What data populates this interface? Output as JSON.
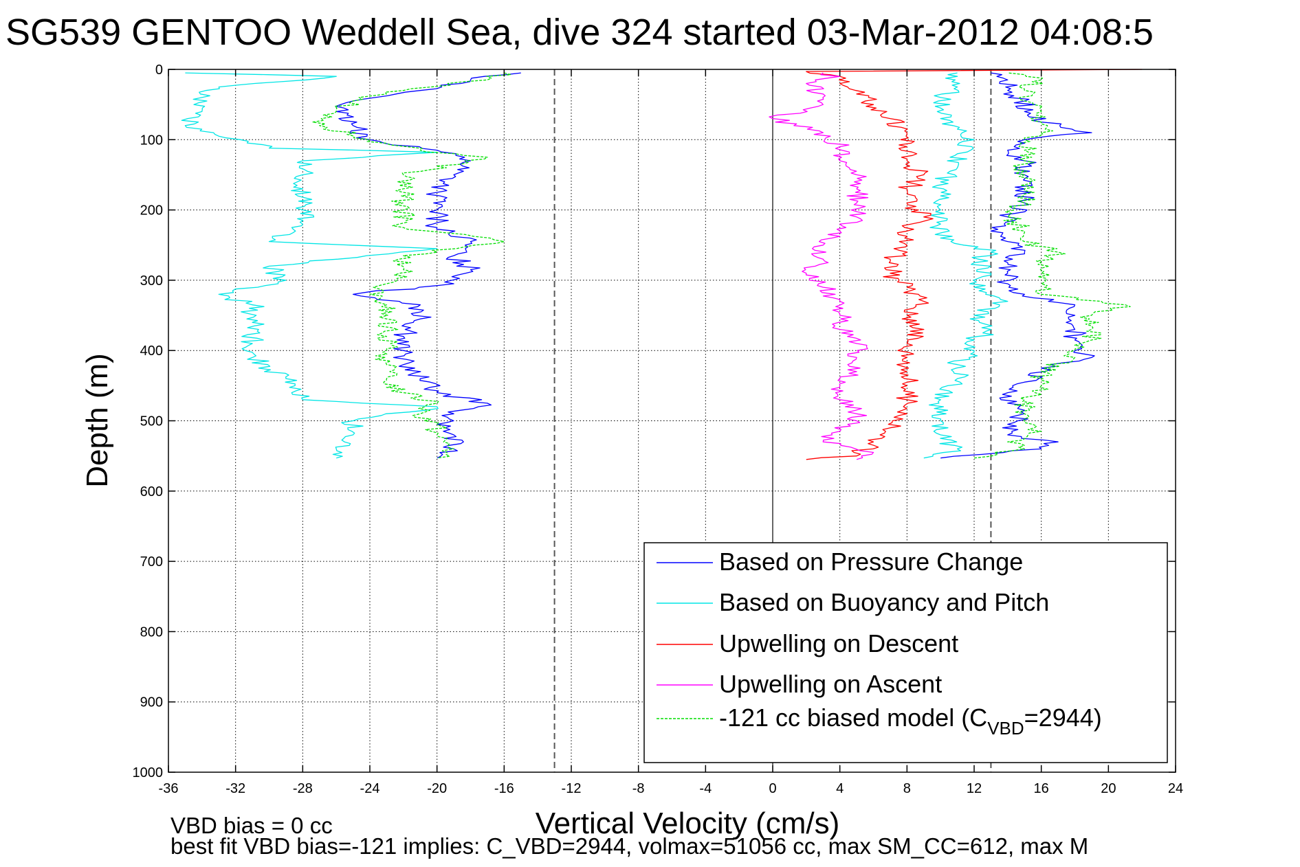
{
  "chart_data": {
    "type": "line",
    "title": "SG539 GENTOO Weddell Sea, dive 324 started 03-Mar-2012 04:08:5",
    "xlabel": "Vertical Velocity (cm/s)",
    "ylabel": "Depth (m)",
    "xlim": [
      -36,
      24
    ],
    "ylim": [
      0,
      1000
    ],
    "y_inverted": true,
    "grid": true,
    "x_ticks": [
      "-36",
      "-32",
      "-28",
      "-24",
      "-20",
      "-16",
      "-12",
      "-8",
      "-4",
      "0",
      "4",
      "8",
      "12",
      "16",
      "20",
      "24"
    ],
    "y_ticks": [
      "0",
      "100",
      "200",
      "300",
      "400",
      "500",
      "600",
      "700",
      "800",
      "900",
      "1000"
    ],
    "reference_lines": [
      {
        "x": -13,
        "style": "dashed",
        "color": "#555555"
      },
      {
        "x": 0,
        "style": "solid",
        "color": "#000000"
      },
      {
        "x": 13,
        "style": "dashed",
        "color": "#555555"
      }
    ],
    "legend_position": "bottom-right",
    "series": [
      {
        "name": "Based on Pressure Change",
        "color": "#0000ff",
        "style": "solid",
        "segments": [
          {
            "y": [
              5,
              15,
              30,
              45,
              60,
              80,
              100,
              115,
              130,
              150,
              175,
              200,
              225,
              245,
              265,
              285,
              305,
              320,
              335,
              355,
              380,
              400,
              420,
              440,
              460,
              475,
              490,
              505,
              520,
              540,
              553
            ],
            "x": [
              -15,
              -18,
              -21,
              -25,
              -26,
              -25,
              -24,
              -20,
              -18,
              -19,
              -20,
              -20,
              -20,
              -18,
              -19,
              -18,
              -19,
              -25,
              -21,
              -21,
              -22,
              -22,
              -22,
              -21,
              -20,
              -17,
              -19,
              -20,
              -19,
              -19,
              -20
            ]
          },
          {
            "y": [
              553,
              540,
              530,
              520,
              505,
              490,
              475,
              460,
              445,
              425,
              410,
              400,
              385,
              370,
              350,
              335,
              320,
              305,
              290,
              275,
              260,
              245,
              230,
              210,
              190,
              170,
              150,
              130,
              115,
              100,
              90,
              75,
              60,
              45,
              30,
              15,
              5
            ],
            "x": [
              10,
              16,
              17,
              14,
              14,
              15,
              14,
              14,
              15,
              16,
              19,
              18,
              18,
              18,
              18,
              18,
              15,
              14,
              14,
              14,
              15,
              14,
              13,
              14,
              15,
              15,
              15,
              15,
              14,
              15,
              19,
              16,
              15,
              15,
              14,
              14,
              13
            ]
          }
        ]
      },
      {
        "name": "Based on Buoyancy and Pitch",
        "color": "#00e5e5",
        "style": "solid",
        "segments": [
          {
            "y": [
              5,
              10,
              25,
              40,
              60,
              80,
              95,
              112,
              118,
              130,
              150,
              170,
              200,
              220,
              245,
              255,
              280,
              300,
              320,
              335,
              360,
              390,
              410,
              440,
              470,
              480,
              500,
              520,
              540,
              553
            ],
            "x": [
              -35,
              -26,
              -33,
              -34,
              -34,
              -35,
              -33,
              -30,
              -20,
              -28,
              -28,
              -28,
              -28,
              -28,
              -30,
              -20,
              -30,
              -29,
              -33,
              -31,
              -31,
              -31,
              -31,
              -29,
              -28,
              -20,
              -25,
              -25,
              -26,
              -26
            ]
          },
          {
            "y": [
              553,
              540,
              520,
              500,
              470,
              440,
              420,
              400,
              385,
              370,
              350,
              330,
              310,
              290,
              275,
              260,
              240,
              220,
              200,
              180,
              160,
              140,
              120,
              100,
              85,
              70,
              55,
              40,
              25,
              10,
              5
            ],
            "x": [
              9,
              11,
              10,
              10,
              10,
              11,
              11,
              12,
              12,
              13,
              12,
              14,
              12,
              13,
              12,
              13,
              10,
              10,
              10,
              10,
              10,
              11,
              11,
              12,
              11,
              10,
              10,
              10,
              11,
              11,
              11
            ]
          }
        ]
      },
      {
        "name": "Upwelling on Descent",
        "color": "#ff0000",
        "style": "solid",
        "segments": [
          {
            "y": [
              0,
              3,
              10,
              20,
              35,
              50,
              70,
              90,
              110,
              130,
              150,
              170,
              190,
              210,
              230,
              250,
              270,
              290,
              310,
              330,
              350,
              370,
              390,
              410,
              430,
              450,
              470,
              490,
              510,
              530,
              550,
              555
            ],
            "x": [
              22,
              2,
              4,
              4,
              5,
              6,
              7,
              8,
              8,
              8,
              9,
              8,
              8,
              9,
              8,
              8,
              7,
              7,
              8,
              9,
              8,
              9,
              8,
              8,
              8,
              8,
              8,
              8,
              7,
              6,
              5,
              2
            ]
          }
        ]
      },
      {
        "name": "Upwelling on Ascent",
        "color": "#ff00ff",
        "style": "solid",
        "segments": [
          {
            "y": [
              555,
              545,
              530,
              515,
              500,
              490,
              470,
              450,
              430,
              410,
              390,
              370,
              350,
              330,
              310,
              290,
              270,
              250,
              230,
              210,
              190,
              170,
              150,
              130,
              110,
              90,
              70,
              50,
              35,
              20,
              10,
              5
            ],
            "x": [
              5,
              6,
              3,
              4,
              5,
              5,
              4,
              4,
              5,
              5,
              5,
              4,
              4,
              4,
              3,
              2,
              3,
              3,
              4,
              5,
              5,
              5,
              5,
              4,
              4,
              3,
              0,
              3,
              3,
              2,
              4,
              3
            ]
          }
        ]
      },
      {
        "name": "-121 cc biased model (C_VBD=2944)",
        "color": "#00dd00",
        "style": "dashed",
        "segments": [
          {
            "y": [
              5,
              15,
              30,
              45,
              60,
              80,
              100,
              115,
              125,
              150,
              175,
              200,
              225,
              245,
              265,
              285,
              305,
              320,
              335,
              355,
              380,
              400,
              420,
              440,
              460,
              475,
              490,
              505,
              520,
              540,
              553
            ],
            "x": [
              -16,
              -17,
              -22,
              -25,
              -26,
              -27,
              -24,
              -21,
              -17,
              -22,
              -22,
              -22,
              -22,
              -16,
              -22,
              -22,
              -23,
              -24,
              -23,
              -23,
              -23,
              -23,
              -23,
              -23,
              -22,
              -20,
              -21,
              -20,
              -20,
              -19,
              -20
            ]
          },
          {
            "y": [
              553,
              540,
              530,
              515,
              500,
              490,
              470,
              450,
              430,
              410,
              400,
              385,
              370,
              350,
              335,
              320,
              305,
              290,
              275,
              260,
              245,
              230,
              210,
              190,
              170,
              150,
              130,
              115,
              100,
              90,
              75,
              60,
              45,
              30,
              15,
              5
            ],
            "x": [
              12,
              15,
              14,
              16,
              15,
              15,
              15,
              16,
              16,
              18,
              18,
              19,
              19,
              19,
              21,
              16,
              16,
              16,
              16,
              17,
              15,
              15,
              14,
              15,
              15,
              15,
              15,
              15,
              15,
              16,
              16,
              16,
              15,
              15,
              16,
              14
            ]
          }
        ]
      }
    ]
  },
  "legend": {
    "items": [
      {
        "label": "Based on Pressure Change",
        "color": "#0000ff",
        "dashed": false
      },
      {
        "label": "Based on Buoyancy and Pitch",
        "color": "#00e5e5",
        "dashed": false
      },
      {
        "label": "Upwelling on Descent",
        "color": "#ff0000",
        "dashed": false
      },
      {
        "label": "Upwelling on Ascent",
        "color": "#ff00ff",
        "dashed": false
      },
      {
        "label_pre": "-121 cc biased model (C",
        "label_sub": "VBD",
        "label_post": "=2944)",
        "color": "#00dd00",
        "dashed": true
      }
    ]
  },
  "footer": {
    "line1": "VBD bias = 0 cc",
    "line2": "best fit VBD bias=-121 implies: C_VBD=2944, volmax=51056 cc, max SM_CC=612, max M"
  }
}
